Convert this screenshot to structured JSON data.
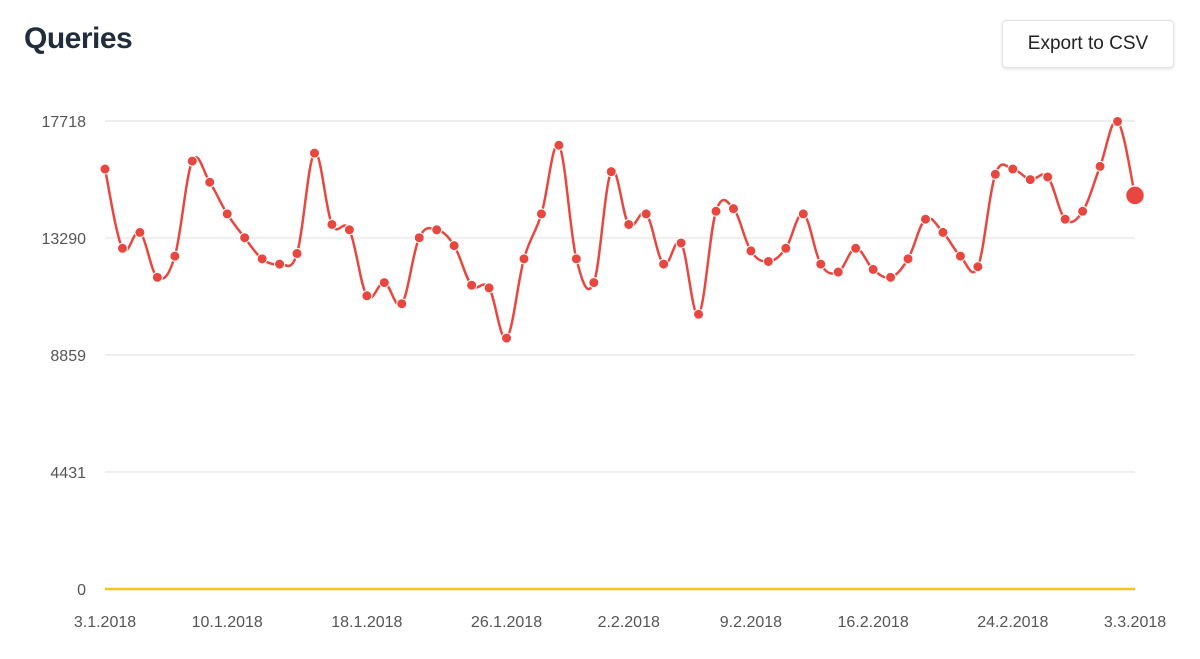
{
  "header": {
    "title": "Queries",
    "export_label": "Export to CSV"
  },
  "chart_data": {
    "type": "line",
    "title": "Queries",
    "xlabel": "",
    "ylabel": "",
    "y_ticks": [
      0,
      4431,
      8859,
      13290,
      17718
    ],
    "ylim": [
      0,
      17718
    ],
    "x_ticks": [
      "3.1.2018",
      "10.1.2018",
      "18.1.2018",
      "26.1.2018",
      "2.2.2018",
      "9.2.2018",
      "16.2.2018",
      "24.2.2018",
      "3.3.2018"
    ],
    "x_tick_index": [
      0,
      7,
      15,
      23,
      30,
      37,
      44,
      52,
      59
    ],
    "grid": true,
    "colors": {
      "line": "#e8473f",
      "zero_line": "#f5c518",
      "grid": "#e3e3e3"
    },
    "series": [
      {
        "name": "Queries",
        "dates": [
          "3.1.2018",
          "4.1.2018",
          "5.1.2018",
          "6.1.2018",
          "7.1.2018",
          "8.1.2018",
          "9.1.2018",
          "10.1.2018",
          "11.1.2018",
          "12.1.2018",
          "13.1.2018",
          "14.1.2018",
          "15.1.2018",
          "16.1.2018",
          "17.1.2018",
          "18.1.2018",
          "19.1.2018",
          "20.1.2018",
          "21.1.2018",
          "22.1.2018",
          "23.1.2018",
          "24.1.2018",
          "25.1.2018",
          "26.1.2018",
          "27.1.2018",
          "28.1.2018",
          "29.1.2018",
          "30.1.2018",
          "31.1.2018",
          "1.2.2018",
          "2.2.2018",
          "3.2.2018",
          "4.2.2018",
          "5.2.2018",
          "6.2.2018",
          "7.2.2018",
          "8.2.2018",
          "9.2.2018",
          "10.2.2018",
          "11.2.2018",
          "12.2.2018",
          "13.2.2018",
          "14.2.2018",
          "15.2.2018",
          "16.2.2018",
          "17.2.2018",
          "18.2.2018",
          "19.2.2018",
          "20.2.2018",
          "21.2.2018",
          "22.2.2018",
          "23.2.2018",
          "24.2.2018",
          "25.2.2018",
          "26.2.2018",
          "27.2.2018",
          "28.2.2018",
          "1.3.2018",
          "2.3.2018",
          "3.3.2018"
        ],
        "values": [
          15900,
          12900,
          13500,
          11800,
          12600,
          16200,
          15400,
          14200,
          13300,
          12500,
          12300,
          12700,
          16500,
          13800,
          13600,
          11100,
          11600,
          10800,
          13300,
          13600,
          13000,
          11500,
          11400,
          9500,
          12500,
          14200,
          16800,
          12500,
          11600,
          15800,
          13800,
          14200,
          12300,
          13100,
          10400,
          14300,
          14400,
          12800,
          12400,
          12900,
          14200,
          12300,
          12000,
          12900,
          12100,
          11800,
          12500,
          14000,
          13500,
          12600,
          12200,
          15700,
          15900,
          15500,
          15600,
          14000,
          14300,
          16000,
          17700,
          14900
        ]
      }
    ]
  }
}
